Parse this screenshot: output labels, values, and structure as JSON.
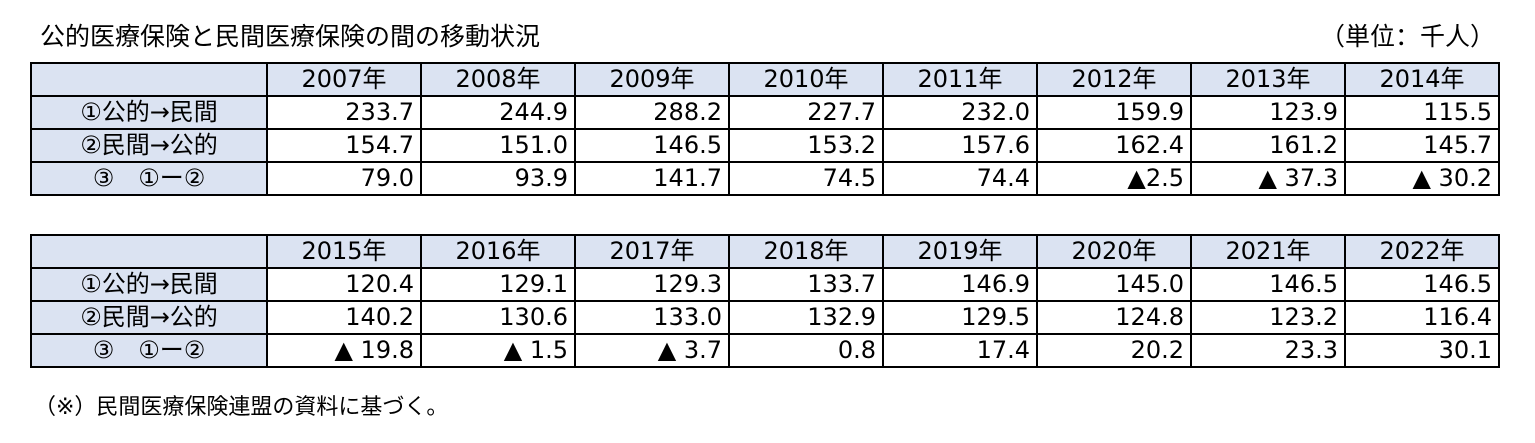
{
  "title": "公的医療保険と民間医療保険の間の移動状況",
  "unit": "（単位：千人）",
  "note": "（※）民間医療保険連盟の資料に基づく。",
  "row_labels": [
    "①公的→民間",
    "②民間→公的",
    "③　①ー②"
  ],
  "table1": {
    "years": [
      "2007年",
      "2008年",
      "2009年",
      "2010年",
      "2011年",
      "2012年",
      "2013年",
      "2014年"
    ],
    "rows": [
      [
        "233.7",
        "244.9",
        "288.2",
        "227.7",
        "232.0",
        "159.9",
        "123.9",
        "115.5"
      ],
      [
        "154.7",
        "151.0",
        "146.5",
        "153.2",
        "157.6",
        "162.4",
        "161.2",
        "145.7"
      ],
      [
        "79.0",
        "93.9",
        "141.7",
        "74.5",
        "74.4",
        "▲2.5",
        "▲ 37.3",
        "▲ 30.2"
      ]
    ]
  },
  "table2": {
    "years": [
      "2015年",
      "2016年",
      "2017年",
      "2018年",
      "2019年",
      "2020年",
      "2021年",
      "2022年"
    ],
    "rows": [
      [
        "120.4",
        "129.1",
        "129.3",
        "133.7",
        "146.9",
        "145.0",
        "146.5",
        "146.5"
      ],
      [
        "140.2",
        "130.6",
        "133.0",
        "132.9",
        "129.5",
        "124.8",
        "123.2",
        "116.4"
      ],
      [
        "▲ 19.8",
        "▲ 1.5",
        "▲ 3.7",
        "0.8",
        "17.4",
        "20.2",
        "23.3",
        "30.1"
      ]
    ]
  }
}
